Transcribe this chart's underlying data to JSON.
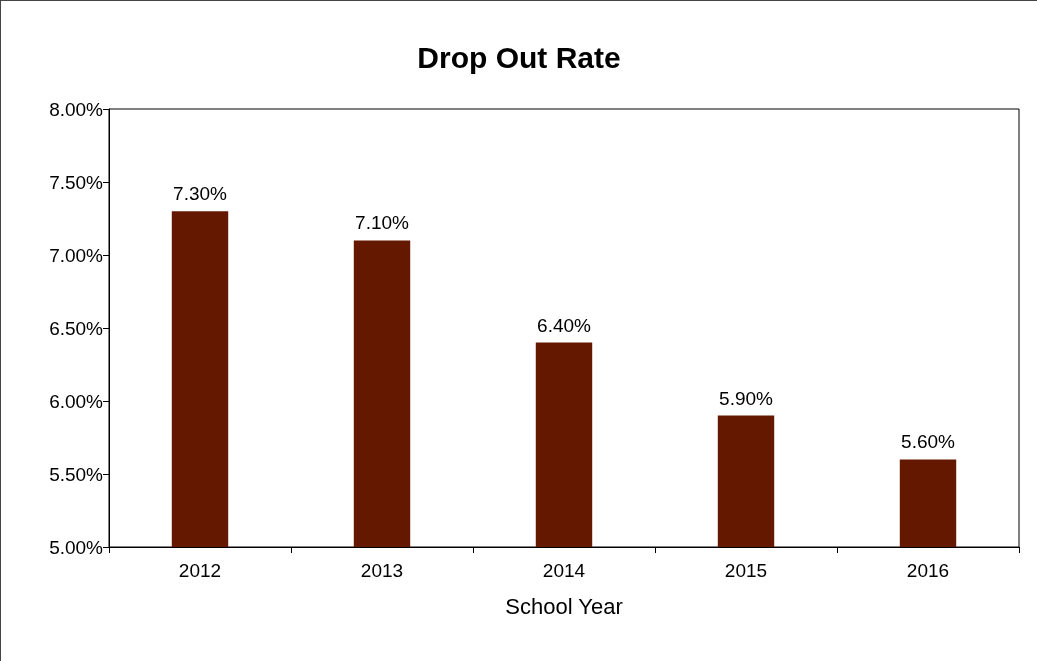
{
  "chart_data": {
    "type": "bar",
    "title": "Drop Out Rate",
    "xlabel": "School Year",
    "categories": [
      "2012",
      "2013",
      "2014",
      "2015",
      "2016"
    ],
    "values": [
      7.3,
      7.1,
      6.4,
      5.9,
      5.6
    ],
    "value_labels": [
      "7.30%",
      "7.10%",
      "6.40%",
      "5.90%",
      "5.60%"
    ],
    "color": "#641800",
    "ylim": [
      5,
      8
    ],
    "yticks": [
      {
        "value": 5,
        "label": "5.00%"
      },
      {
        "value": 5.5,
        "label": "5.50%"
      },
      {
        "value": 6,
        "label": "6.00%"
      },
      {
        "value": 6.5,
        "label": "6.50%"
      },
      {
        "value": 7,
        "label": "7.00%"
      },
      {
        "value": 7.5,
        "label": "7.50%"
      },
      {
        "value": 8,
        "label": "8.00%"
      }
    ],
    "grid": false
  }
}
